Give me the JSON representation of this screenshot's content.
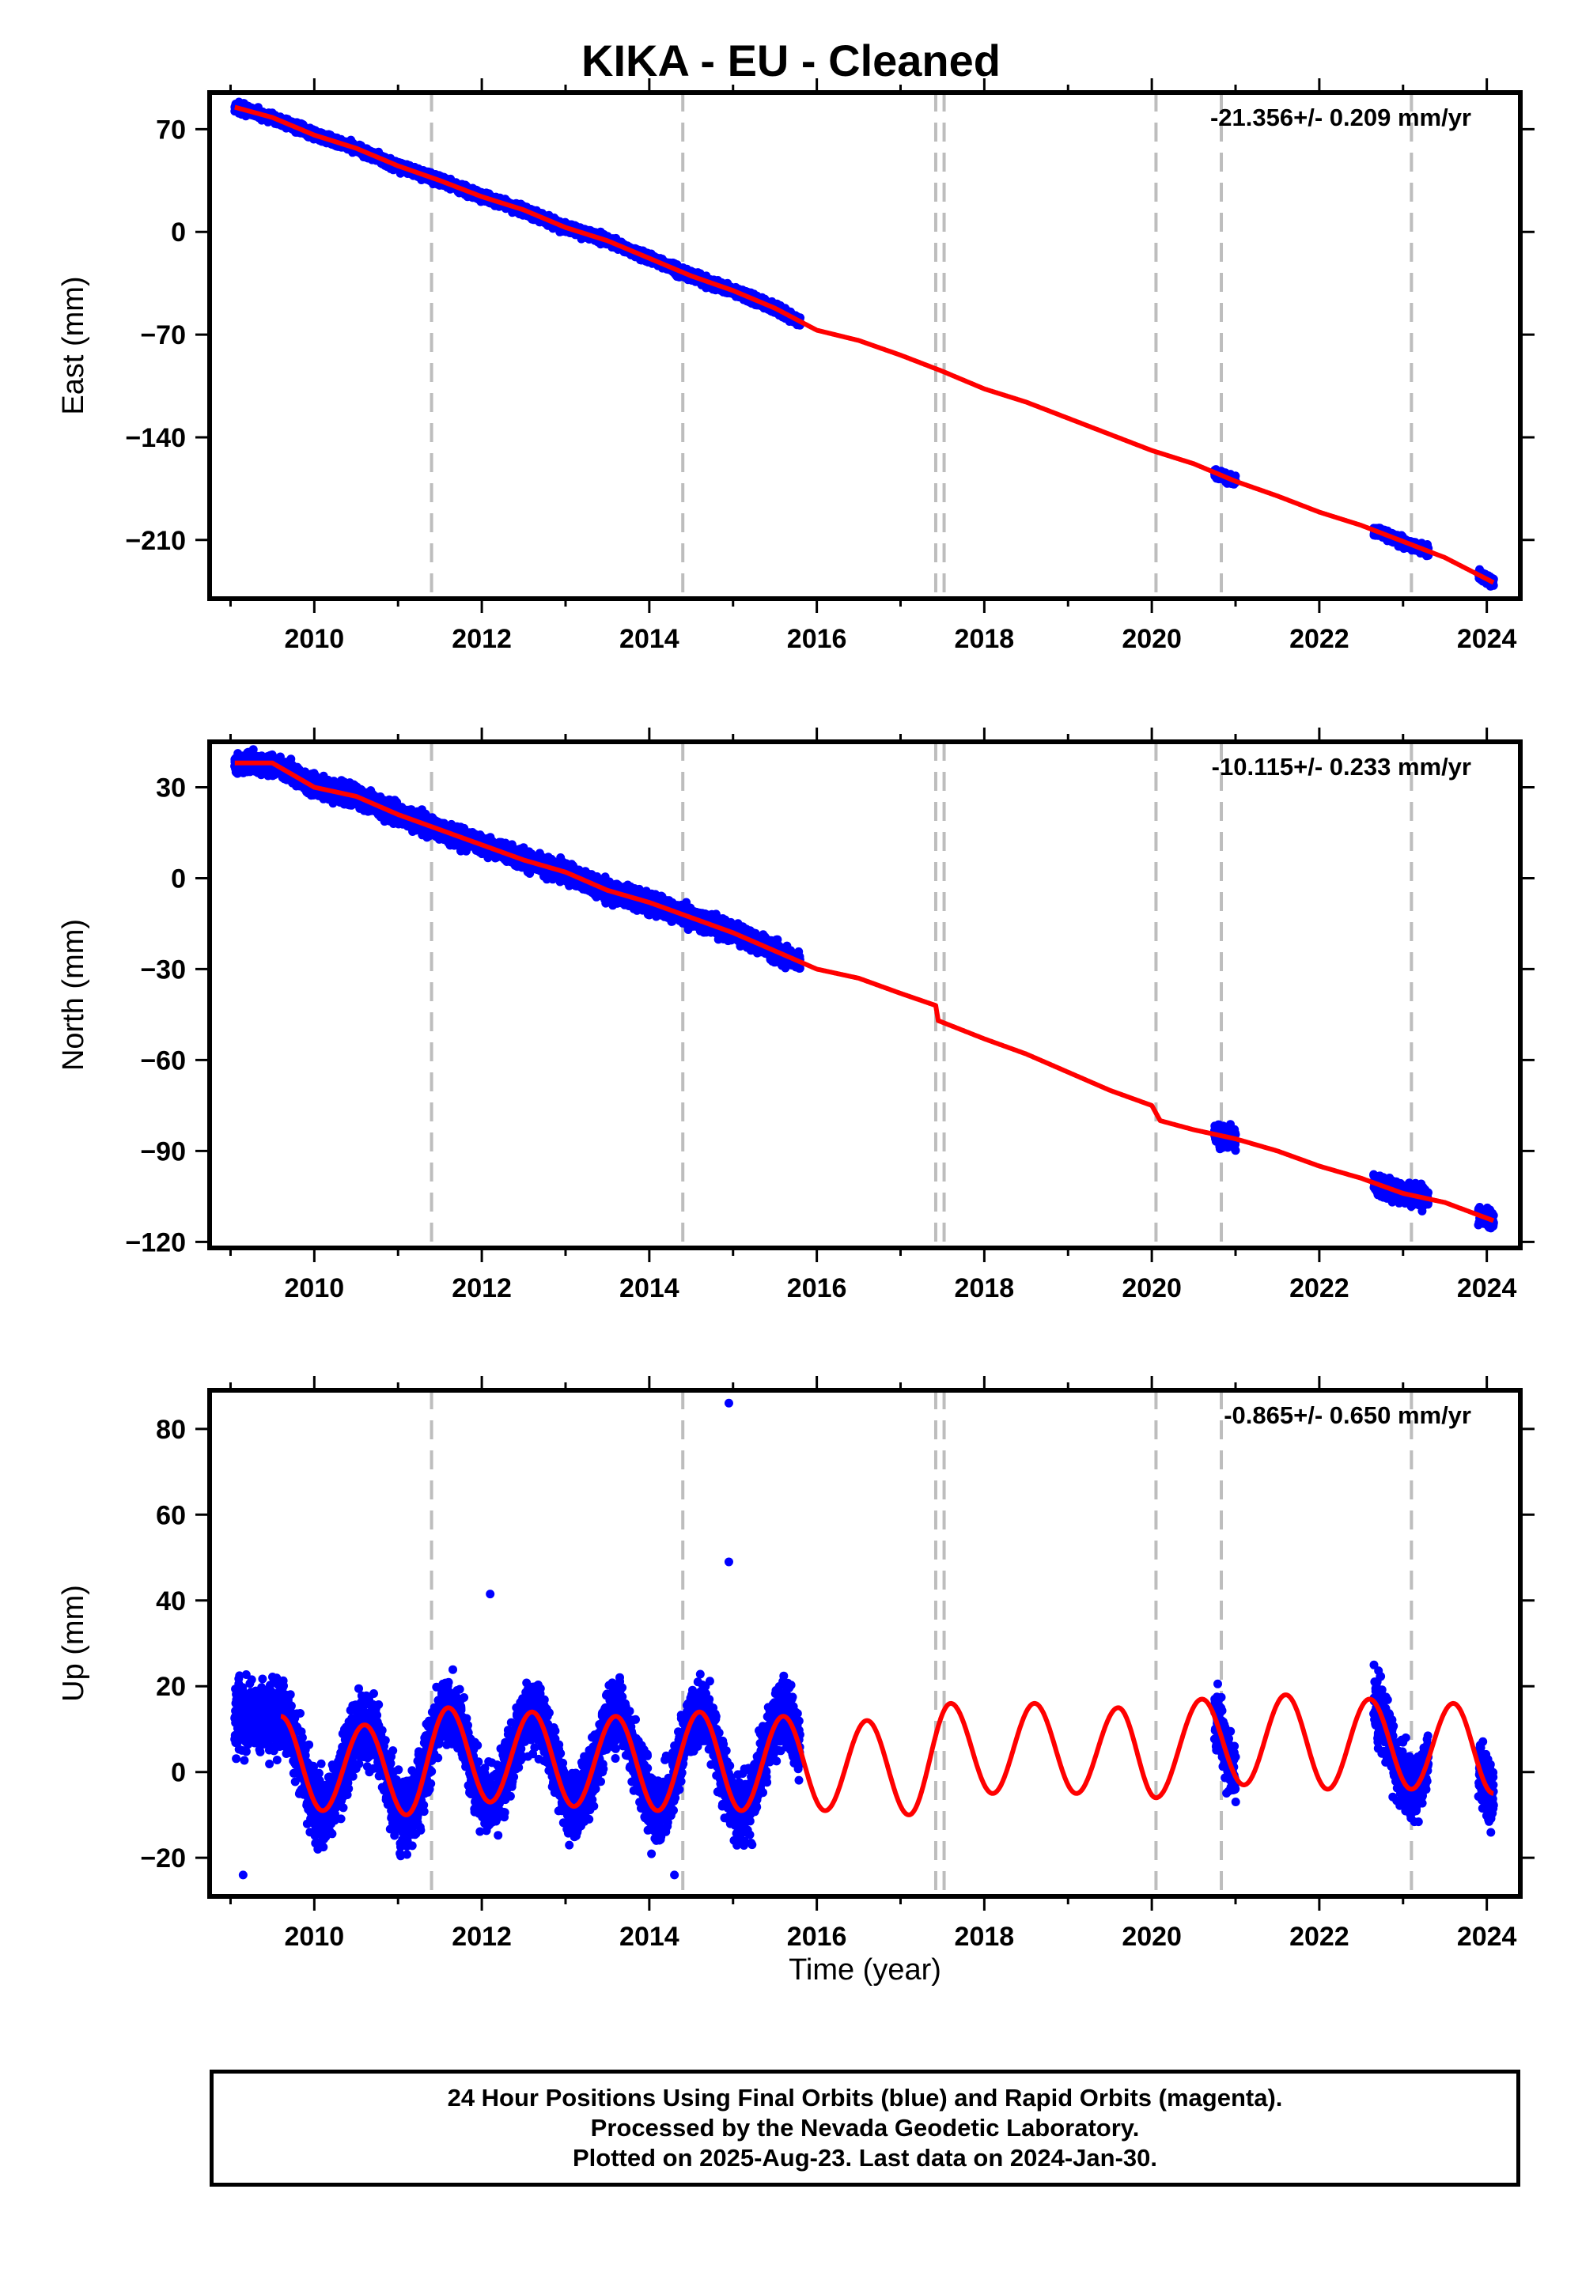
{
  "title": "KIKA  - EU - Cleaned",
  "xlabel": "Time (year)",
  "footer": [
    "24 Hour Positions Using Final Orbits (blue) and Rapid Orbits (magenta).",
    "Processed by the Nevada Geodetic Laboratory.",
    "Plotted on 2025-Aug-23. Last data on 2024-Jan-30."
  ],
  "colors": {
    "data": "#0000ff",
    "model": "#ff0000",
    "event_lines": "#bdbdbd",
    "frame": "#000000"
  },
  "chart_data": [
    {
      "type": "scatter",
      "ylabel": "East (mm)",
      "rate": "-21.356+/- 0.209 mm/yr",
      "xlim": [
        2008.75,
        2024.4
      ],
      "ylim": [
        -250,
        95
      ],
      "xticks": [
        "2010",
        "2012",
        "2014",
        "2016",
        "2018",
        "2020",
        "2022",
        "2024"
      ],
      "yticks": [
        "70",
        "0",
        "-70",
        "-140",
        "-210"
      ],
      "event_lines": [
        2011.4,
        2014.4,
        2017.42,
        2017.52,
        2020.05,
        2020.83,
        2023.1
      ],
      "data_segments": [
        [
          2009.05,
          2015.8
        ],
        [
          2020.75,
          2021.0
        ],
        [
          2022.65,
          2023.3
        ],
        [
          2023.9,
          2024.08
        ]
      ],
      "model": {
        "samples": [
          [
            2009.05,
            85
          ],
          [
            2009.5,
            78
          ],
          [
            2010.0,
            66
          ],
          [
            2010.5,
            57
          ],
          [
            2011.0,
            45
          ],
          [
            2011.5,
            35
          ],
          [
            2012.0,
            24
          ],
          [
            2012.5,
            15
          ],
          [
            2013.0,
            3
          ],
          [
            2013.5,
            -6
          ],
          [
            2014.0,
            -18
          ],
          [
            2014.5,
            -30
          ],
          [
            2015.0,
            -40
          ],
          [
            2015.5,
            -52
          ],
          [
            2016.0,
            -67
          ],
          [
            2016.5,
            -74
          ],
          [
            2017.0,
            -84
          ],
          [
            2017.5,
            -95
          ],
          [
            2018.0,
            -107
          ],
          [
            2018.5,
            -116
          ],
          [
            2019.0,
            -127
          ],
          [
            2019.5,
            -138
          ],
          [
            2020.0,
            -149
          ],
          [
            2020.5,
            -158
          ],
          [
            2021.0,
            -170
          ],
          [
            2021.5,
            -180
          ],
          [
            2022.0,
            -191
          ],
          [
            2022.5,
            -200
          ],
          [
            2023.0,
            -211
          ],
          [
            2023.5,
            -222
          ],
          [
            2024.08,
            -239
          ]
        ]
      }
    },
    {
      "type": "scatter",
      "ylabel": "North (mm)",
      "rate": "-10.115+/- 0.233 mm/yr",
      "xlim": [
        2008.75,
        2024.4
      ],
      "ylim": [
        -122,
        45
      ],
      "xticks": [
        "2010",
        "2012",
        "2014",
        "2016",
        "2018",
        "2020",
        "2022",
        "2024"
      ],
      "yticks": [
        "30",
        "0",
        "-30",
        "-60",
        "-90",
        "-120"
      ],
      "event_lines": [
        2011.4,
        2014.4,
        2017.42,
        2017.52,
        2020.05,
        2020.83,
        2023.1
      ],
      "data_segments": [
        [
          2009.05,
          2015.8
        ],
        [
          2020.75,
          2021.0
        ],
        [
          2022.65,
          2023.3
        ],
        [
          2023.9,
          2024.08
        ]
      ],
      "model": {
        "samples": [
          [
            2009.05,
            38
          ],
          [
            2009.5,
            38
          ],
          [
            2010.0,
            30
          ],
          [
            2010.5,
            27
          ],
          [
            2011.0,
            21
          ],
          [
            2011.5,
            16
          ],
          [
            2012.0,
            11
          ],
          [
            2012.5,
            6
          ],
          [
            2013.0,
            2
          ],
          [
            2013.5,
            -4
          ],
          [
            2014.0,
            -8
          ],
          [
            2014.5,
            -13
          ],
          [
            2015.0,
            -18
          ],
          [
            2015.5,
            -24
          ],
          [
            2016.0,
            -30
          ],
          [
            2016.5,
            -33
          ],
          [
            2017.0,
            -38
          ],
          [
            2017.42,
            -42
          ],
          [
            2017.45,
            -47
          ],
          [
            2018.0,
            -53
          ],
          [
            2018.5,
            -58
          ],
          [
            2019.0,
            -64
          ],
          [
            2019.5,
            -70
          ],
          [
            2020.0,
            -75
          ],
          [
            2020.1,
            -80
          ],
          [
            2020.5,
            -83
          ],
          [
            2021.0,
            -86
          ],
          [
            2021.5,
            -90
          ],
          [
            2022.0,
            -95
          ],
          [
            2022.5,
            -99
          ],
          [
            2023.0,
            -104
          ],
          [
            2023.5,
            -107
          ],
          [
            2024.08,
            -113
          ]
        ]
      }
    },
    {
      "type": "scatter",
      "ylabel": "Up (mm)",
      "rate": "-0.865+/- 0.650 mm/yr",
      "xlim": [
        2008.75,
        2024.4
      ],
      "ylim": [
        -29,
        89
      ],
      "xticks": [
        "2010",
        "2012",
        "2014",
        "2016",
        "2018",
        "2020",
        "2022",
        "2024"
      ],
      "yticks": [
        "80",
        "60",
        "40",
        "20",
        "0",
        "-20"
      ],
      "event_lines": [
        2011.4,
        2014.4,
        2017.42,
        2017.52,
        2020.05,
        2020.83,
        2023.1
      ],
      "data_segments": [
        [
          2009.05,
          2015.8
        ],
        [
          2020.75,
          2021.0
        ],
        [
          2022.65,
          2023.3
        ],
        [
          2023.9,
          2024.08
        ]
      ],
      "outliers": [
        [
          2012.1,
          41.5
        ],
        [
          2014.95,
          86
        ],
        [
          2014.95,
          49
        ],
        [
          2009.15,
          -24
        ],
        [
          2014.3,
          -24
        ]
      ],
      "model": {
        "seasonal": {
          "period_years": 1.0,
          "amplitude_mm": 11,
          "peak_phase": 0.6,
          "offset_mm": 2
        },
        "samples": [
          [
            2009.6,
            13
          ],
          [
            2010.1,
            -9
          ],
          [
            2010.6,
            11
          ],
          [
            2011.1,
            -10
          ],
          [
            2011.6,
            15
          ],
          [
            2012.1,
            -7
          ],
          [
            2012.6,
            14
          ],
          [
            2013.1,
            -8
          ],
          [
            2013.6,
            13
          ],
          [
            2014.1,
            -9
          ],
          [
            2014.6,
            14
          ],
          [
            2015.1,
            -9
          ],
          [
            2015.6,
            13
          ],
          [
            2016.1,
            -9
          ],
          [
            2016.6,
            12
          ],
          [
            2017.1,
            -10
          ],
          [
            2017.6,
            16
          ],
          [
            2018.1,
            -5
          ],
          [
            2018.6,
            16
          ],
          [
            2019.1,
            -5
          ],
          [
            2019.6,
            15
          ],
          [
            2020.05,
            -6
          ],
          [
            2020.6,
            17
          ],
          [
            2021.1,
            -3
          ],
          [
            2021.6,
            18
          ],
          [
            2022.1,
            -4
          ],
          [
            2022.6,
            17
          ],
          [
            2023.1,
            -4
          ],
          [
            2023.6,
            16
          ],
          [
            2024.08,
            -5
          ]
        ]
      }
    }
  ]
}
